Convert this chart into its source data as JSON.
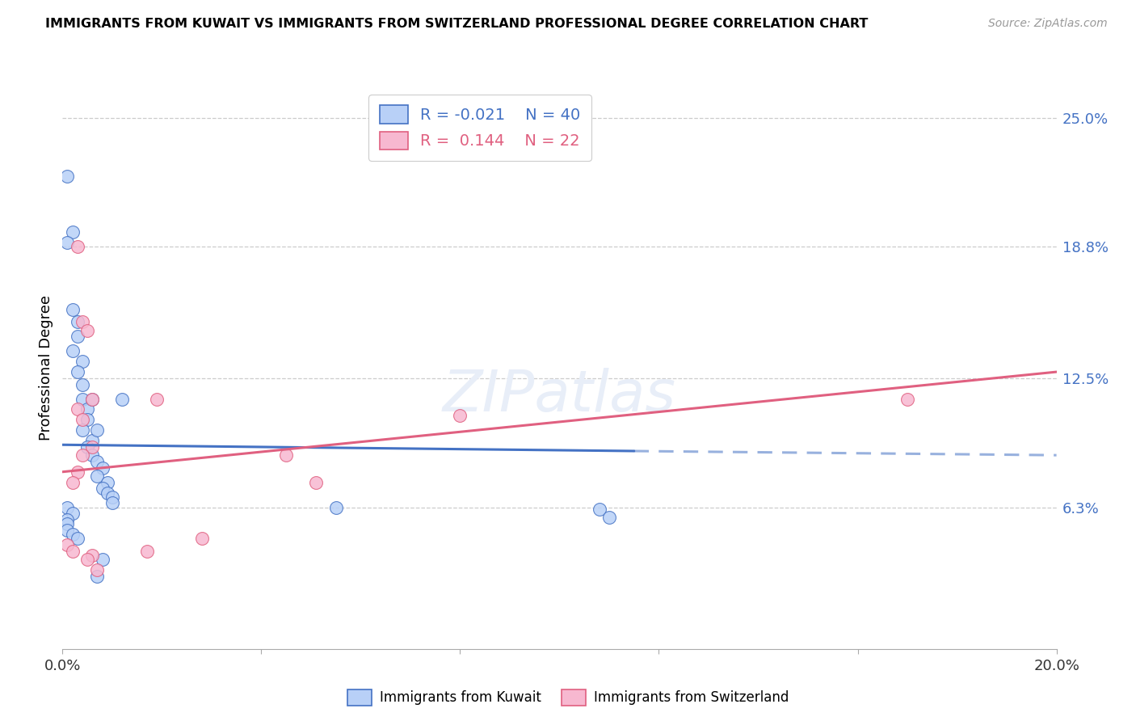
{
  "title": "IMMIGRANTS FROM KUWAIT VS IMMIGRANTS FROM SWITZERLAND PROFESSIONAL DEGREE CORRELATION CHART",
  "source": "Source: ZipAtlas.com",
  "ylabel": "Professional Degree",
  "xlim": [
    0.0,
    0.2
  ],
  "ylim": [
    -0.005,
    0.265
  ],
  "ytick_labels": [
    "6.3%",
    "12.5%",
    "18.8%",
    "25.0%"
  ],
  "ytick_values": [
    0.063,
    0.125,
    0.188,
    0.25
  ],
  "xtick_labels": [
    "0.0%",
    "",
    "",
    "",
    "",
    "20.0%"
  ],
  "xtick_values": [
    0.0,
    0.04,
    0.08,
    0.12,
    0.16,
    0.2
  ],
  "blue_color": "#b8d0f7",
  "pink_color": "#f7b8d0",
  "blue_line_color": "#4472c4",
  "pink_line_color": "#e06080",
  "right_label_color": "#4472c4",
  "scatter_blue": {
    "x": [
      0.001,
      0.002,
      0.001,
      0.002,
      0.003,
      0.003,
      0.002,
      0.004,
      0.003,
      0.004,
      0.004,
      0.005,
      0.005,
      0.004,
      0.006,
      0.005,
      0.006,
      0.007,
      0.007,
      0.006,
      0.008,
      0.007,
      0.009,
      0.008,
      0.009,
      0.01,
      0.01,
      0.001,
      0.002,
      0.001,
      0.001,
      0.001,
      0.002,
      0.003,
      0.055,
      0.012,
      0.008,
      0.007,
      0.108,
      0.11
    ],
    "y": [
      0.222,
      0.195,
      0.19,
      0.158,
      0.152,
      0.145,
      0.138,
      0.133,
      0.128,
      0.122,
      0.115,
      0.11,
      0.105,
      0.1,
      0.095,
      0.092,
      0.088,
      0.085,
      0.1,
      0.115,
      0.082,
      0.078,
      0.075,
      0.072,
      0.07,
      0.068,
      0.065,
      0.063,
      0.06,
      0.057,
      0.055,
      0.052,
      0.05,
      0.048,
      0.063,
      0.115,
      0.038,
      0.03,
      0.062,
      0.058
    ]
  },
  "scatter_pink": {
    "x": [
      0.003,
      0.004,
      0.005,
      0.006,
      0.003,
      0.004,
      0.006,
      0.004,
      0.003,
      0.002,
      0.001,
      0.002,
      0.051,
      0.028,
      0.017,
      0.045,
      0.08,
      0.17,
      0.019,
      0.006,
      0.005,
      0.007
    ],
    "y": [
      0.188,
      0.152,
      0.148,
      0.115,
      0.11,
      0.105,
      0.092,
      0.088,
      0.08,
      0.075,
      0.045,
      0.042,
      0.075,
      0.048,
      0.042,
      0.088,
      0.107,
      0.115,
      0.115,
      0.04,
      0.038,
      0.033
    ]
  },
  "blue_line_solid": {
    "x0": 0.0,
    "x1": 0.115,
    "y0": 0.093,
    "y1": 0.09
  },
  "blue_line_dash": {
    "x0": 0.115,
    "x1": 0.2,
    "y0": 0.09,
    "y1": 0.088
  },
  "pink_line": {
    "x0": 0.0,
    "x1": 0.2,
    "y0": 0.08,
    "y1": 0.128
  }
}
